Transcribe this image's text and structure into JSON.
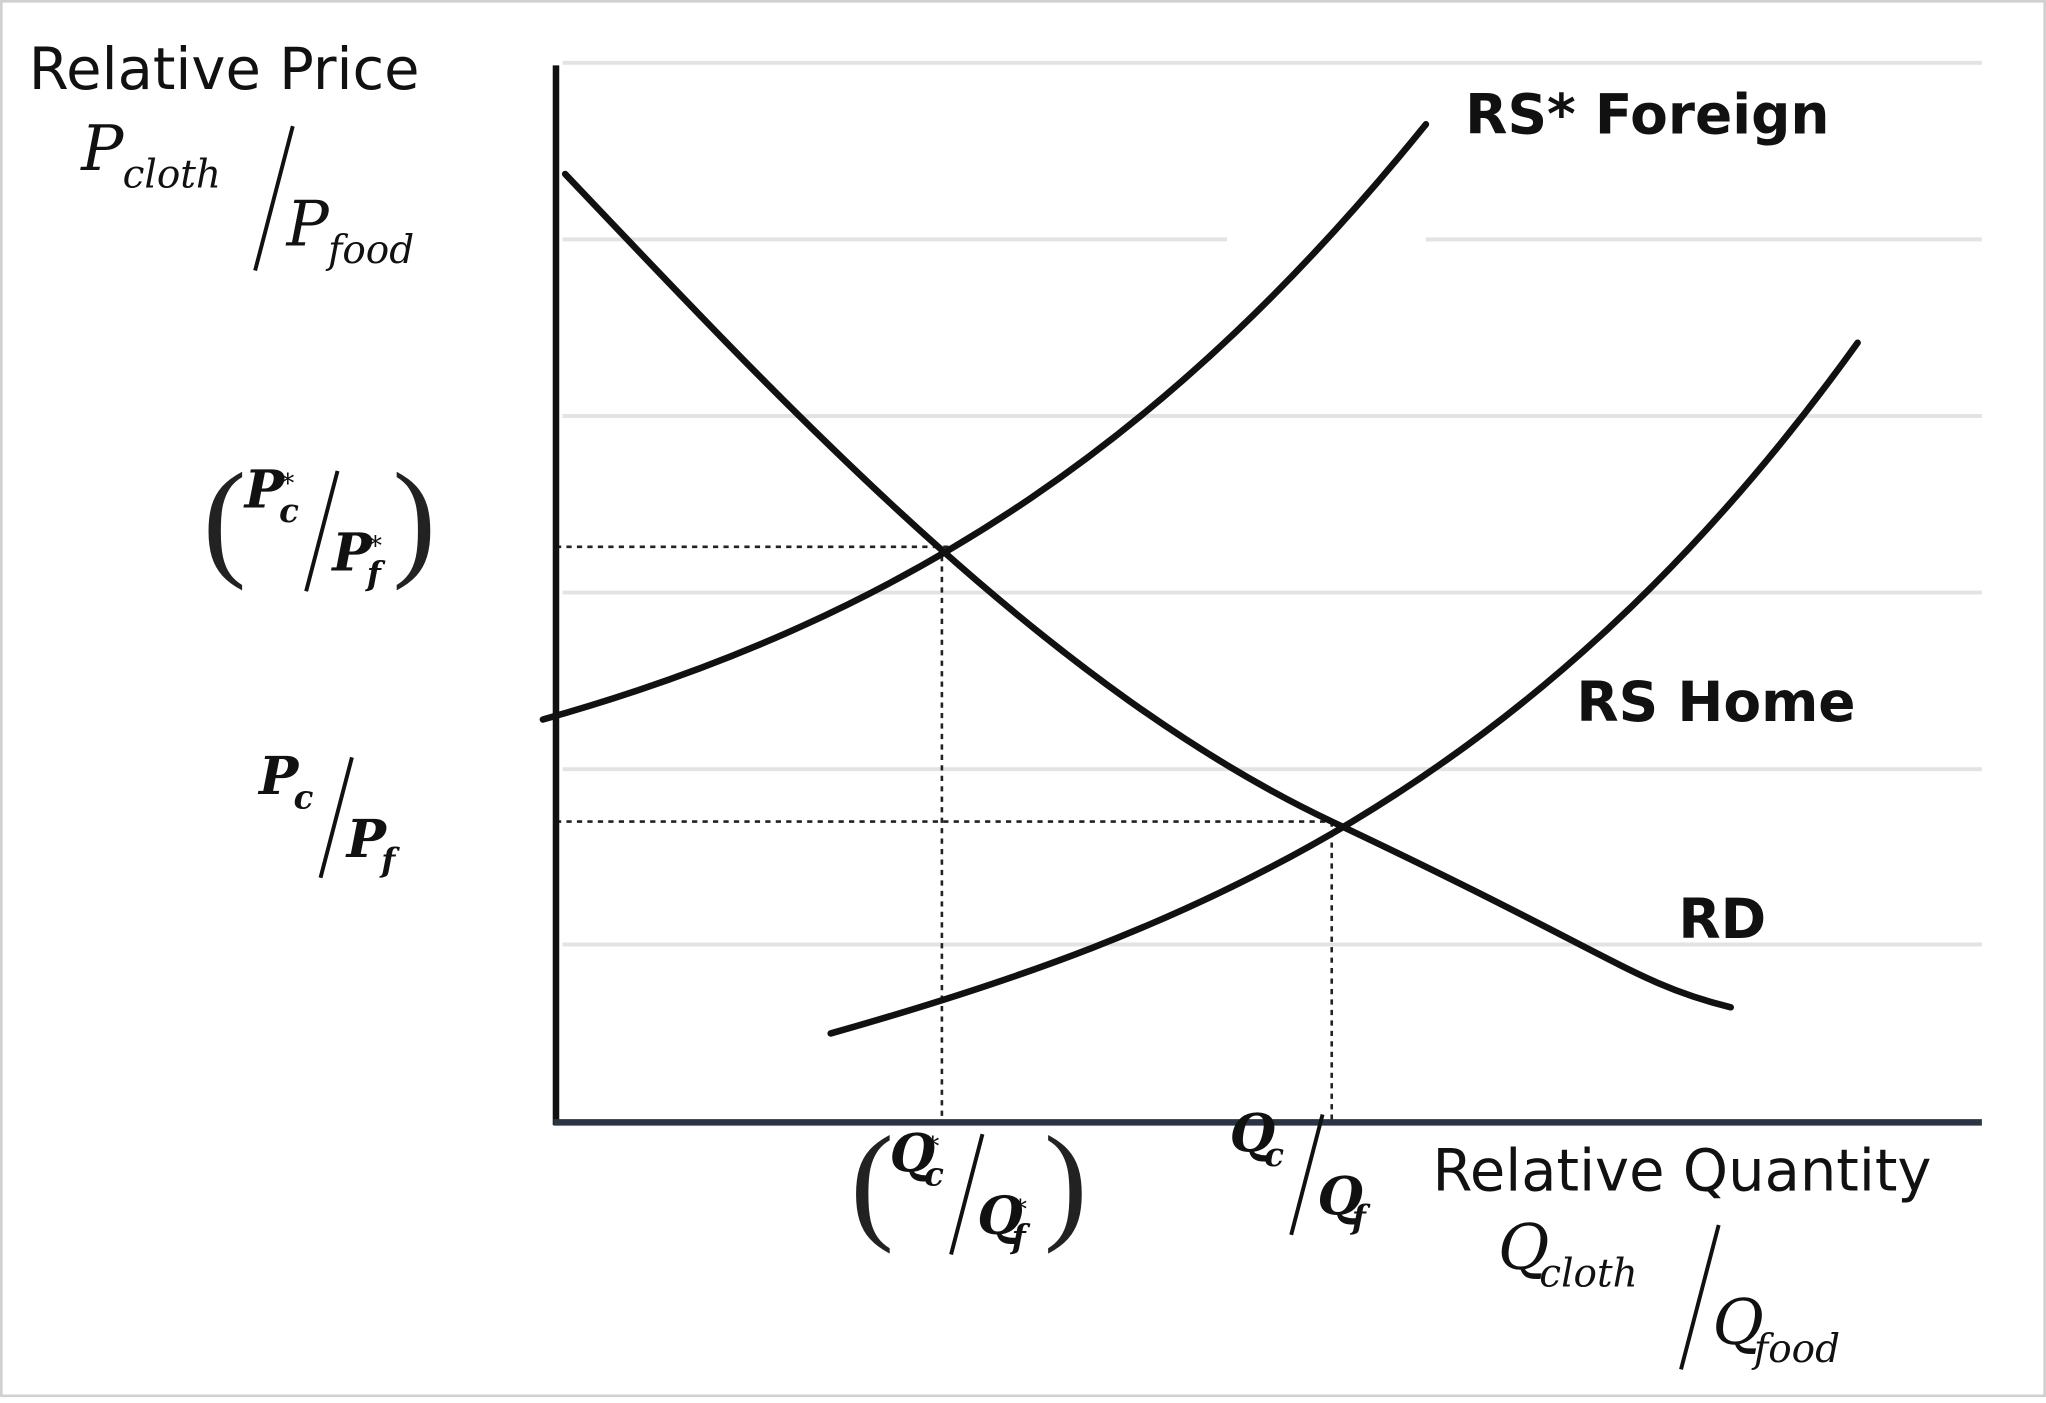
{
  "y_axis": {
    "title": "Relative Price",
    "label": {
      "numerator": {
        "symbol": "P",
        "subscript": "cloth"
      },
      "denominator": {
        "symbol": "P",
        "subscript": "food"
      }
    }
  },
  "x_axis": {
    "title": "Relative Quantity",
    "label": {
      "numerator": {
        "symbol": "Q",
        "subscript": "cloth"
      },
      "denominator": {
        "symbol": "Q",
        "subscript": "food"
      }
    }
  },
  "y_marks": [
    {
      "open": "(",
      "numerator": {
        "symbol": "P",
        "subscript": "c",
        "superscript": "*"
      },
      "denominator": {
        "symbol": "P",
        "subscript": "f",
        "superscript": "*"
      },
      "close": ")"
    },
    {
      "numerator": {
        "symbol": "P",
        "subscript": "c"
      },
      "denominator": {
        "symbol": "P",
        "subscript": "f"
      }
    }
  ],
  "x_marks": [
    {
      "open": "(",
      "numerator": {
        "symbol": "Q",
        "subscript": "c",
        "superscript": "*"
      },
      "denominator": {
        "symbol": "Q",
        "subscript": "f",
        "superscript": "*"
      },
      "close": ")"
    },
    {
      "numerator": {
        "symbol": "Q",
        "subscript": "c"
      },
      "denominator": {
        "symbol": "Q",
        "subscript": "f"
      }
    }
  ],
  "curves": [
    {
      "label": "RS* Foreign"
    },
    {
      "label": "RS Home"
    },
    {
      "label": "RD"
    }
  ]
}
